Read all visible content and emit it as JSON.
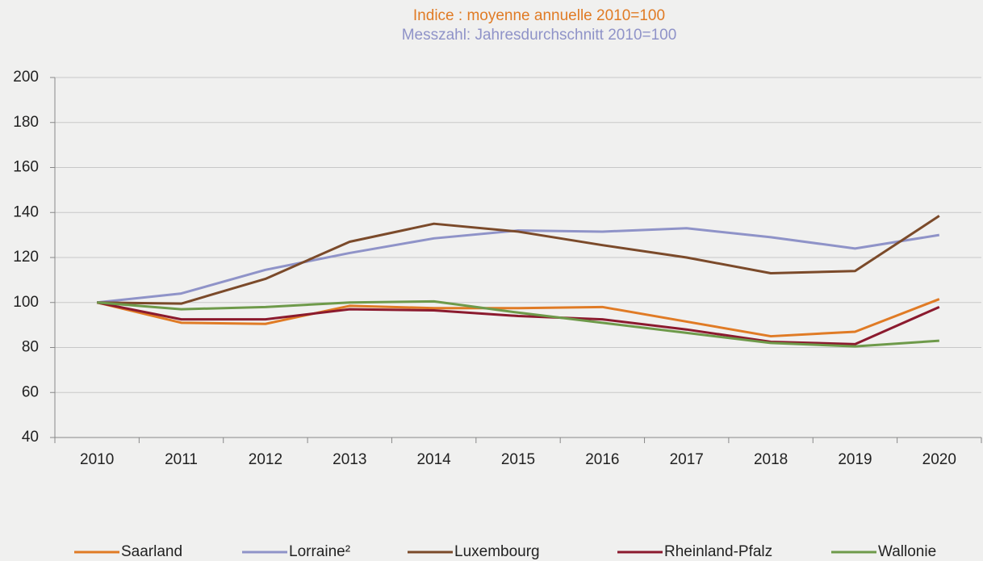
{
  "chart_data": {
    "type": "line",
    "title": "Indice : moyenne annuelle 2010=100",
    "subtitle": "Messzahl: Jahresdurchschnitt 2010=100",
    "categories": [
      "2010",
      "2011",
      "2012",
      "2013",
      "2014",
      "2015",
      "2016",
      "2017",
      "2018",
      "2019",
      "2020"
    ],
    "series": [
      {
        "name": "Saarland",
        "color": "#e07b25",
        "values": [
          100,
          91,
          90.5,
          98.5,
          97.5,
          97.5,
          98,
          91.5,
          85,
          87,
          101.5
        ]
      },
      {
        "name": "Lorraine²",
        "color": "#8f93c8",
        "values": [
          100,
          104,
          114.5,
          122,
          128.5,
          132,
          131.5,
          133,
          129,
          124,
          130
        ]
      },
      {
        "name": "Luxembourg",
        "color": "#7b4a2a",
        "values": [
          100,
          99.5,
          110.5,
          127,
          135,
          131.5,
          125.5,
          120,
          113,
          114,
          138.5
        ]
      },
      {
        "name": "Rheinland-Pfalz",
        "color": "#8b1a2e",
        "values": [
          100,
          92.5,
          92.5,
          97,
          96.5,
          94,
          92.5,
          88,
          82.5,
          81.5,
          98
        ]
      },
      {
        "name": "Wallonie",
        "color": "#6e9a4a",
        "values": [
          100,
          97,
          98,
          100,
          100.5,
          95.5,
          91,
          86.5,
          82,
          80.5,
          83
        ]
      }
    ],
    "ylim": [
      40,
      200
    ],
    "yticks": [
      40,
      60,
      80,
      100,
      120,
      140,
      160,
      180,
      200
    ],
    "grid": true,
    "legend": "bottom"
  }
}
